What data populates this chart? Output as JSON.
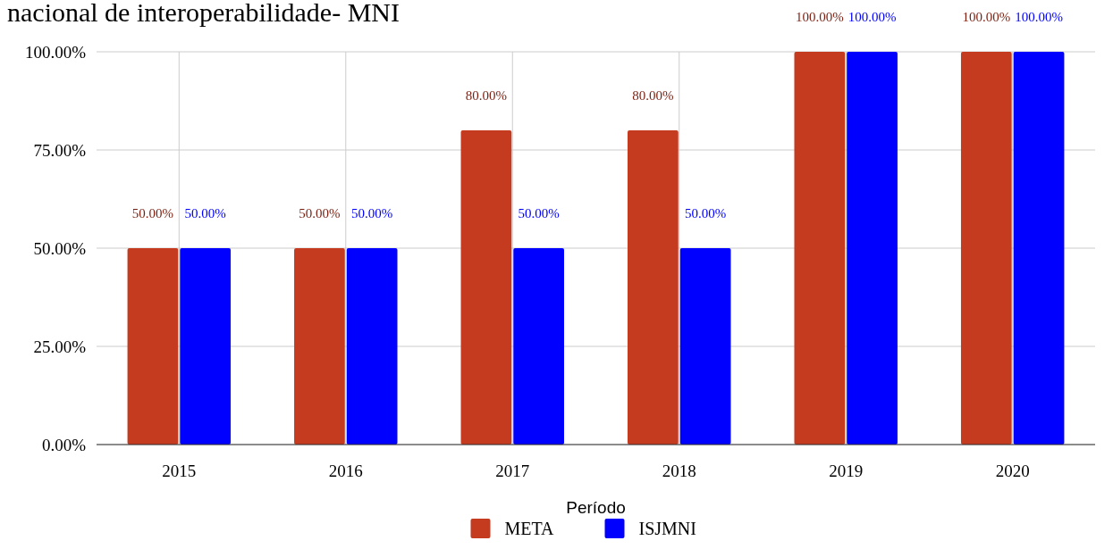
{
  "chart_data": {
    "type": "bar",
    "title": "nacional de interoperabilidade- MNI",
    "xlabel": "Período",
    "categories": [
      "2015",
      "2016",
      "2017",
      "2018",
      "2019",
      "2020"
    ],
    "series": [
      {
        "name": "META",
        "color": "#c53b20",
        "values": [
          50,
          50,
          80,
          80,
          100,
          100
        ],
        "value_labels": [
          "50.00%",
          "50.00%",
          "80.00%",
          "80.00%",
          "100.00%",
          "100.00%"
        ]
      },
      {
        "name": "ISJMNI",
        "color": "#0000ff",
        "values": [
          50,
          50,
          50,
          50,
          100,
          100
        ],
        "value_labels": [
          "50.00%",
          "50.00%",
          "50.00%",
          "50.00%",
          "100.00%",
          "100.00%"
        ]
      }
    ],
    "ylim": [
      0,
      100
    ],
    "yticks": [
      {
        "value": 0,
        "label": "0.00%"
      },
      {
        "value": 25,
        "label": "25.00%"
      },
      {
        "value": 50,
        "label": "50.00%"
      },
      {
        "value": 75,
        "label": "75.00%"
      },
      {
        "value": 100,
        "label": "100.00%"
      }
    ],
    "grid": true,
    "legend": "bottom"
  }
}
